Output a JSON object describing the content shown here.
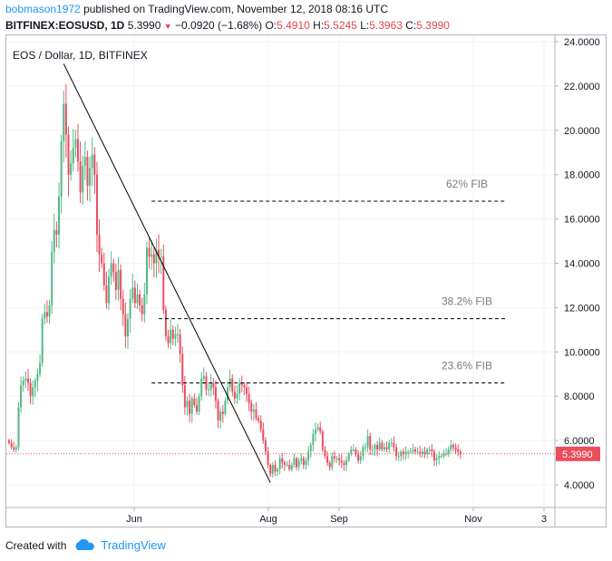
{
  "header": {
    "author": "bobmason1972",
    "published": "published on TradingView.com, November 12, 2018 08:16 UTC",
    "symbol": "BITFINEX:EOSUSD, 1D",
    "last": "5.3990",
    "change": "−0.0920 (−1.68%)",
    "o_label": "O:",
    "o": "5.4910",
    "h_label": "H:",
    "h": "5.5245",
    "l_label": "L:",
    "l": "5.3963",
    "c_label": "C:",
    "c": "5.3990"
  },
  "footer": {
    "created_with": "Created with",
    "brand": "TradingView"
  },
  "colors": {
    "up": "#53b987",
    "down": "#eb4d5c",
    "fib_line": "#000000",
    "fib_label": "#787b86",
    "price_tag": "#eb4d5c",
    "accent": "#2196f3"
  },
  "chart_data": {
    "type": "candlestick",
    "title": "EOS / Dollar, 1D, BITFINEX",
    "y_axis_side": "right",
    "ylim": [
      3.2,
      24.3
    ],
    "yticks": [
      "4.0000",
      "6.0000",
      "8.0000",
      "10.0000",
      "12.0000",
      "14.0000",
      "16.0000",
      "18.0000",
      "20.0000",
      "22.0000",
      "24.0000"
    ],
    "xticks": [
      "Jun",
      "Aug",
      "Sep",
      "Nov",
      "3"
    ],
    "last_price": "5.3990",
    "grid": true,
    "series": [
      {
        "name": "EOSUSD",
        "close": [
          5.9,
          5.7,
          5.6,
          5.7,
          7.5,
          8.5,
          8.7,
          8.8,
          8.6,
          8.0,
          8.4,
          8.7,
          9.0,
          9.5,
          11.5,
          11.8,
          11.6,
          12.1,
          14.5,
          15.5,
          15.3,
          17.0,
          19.5,
          21.2,
          19.8,
          18.0,
          18.5,
          19.2,
          19.6,
          18.6,
          17.2,
          18.4,
          18.8,
          17.5,
          18.3,
          18.9,
          18.0,
          15.3,
          14.4,
          14.0,
          13.0,
          12.2,
          13.4,
          14.0,
          13.6,
          12.8,
          13.7,
          12.4,
          11.7,
          10.7,
          11.5,
          12.4,
          12.9,
          12.2,
          12.6,
          12.1,
          11.7,
          12.6,
          14.7,
          14.3,
          14.4,
          14.0,
          14.6,
          14.3,
          14.3,
          11.9,
          10.7,
          10.4,
          11.0,
          10.6,
          10.8,
          10.8,
          9.9,
          8.5,
          7.5,
          7.8,
          7.2,
          7.9,
          7.6,
          7.3,
          8.0,
          8.8,
          8.9,
          8.3,
          8.3,
          8.6,
          8.4,
          7.8,
          6.9,
          7.3,
          7.2,
          7.8,
          8.4,
          8.8,
          8.2,
          7.9,
          8.1,
          8.6,
          8.5,
          8.4,
          8.1,
          7.7,
          7.3,
          7.4,
          7.0,
          6.9,
          6.5,
          6.0,
          5.5,
          4.9,
          4.5,
          4.9,
          4.6,
          4.7,
          5.2,
          5.0,
          4.9,
          4.9,
          4.7,
          4.9,
          5.2,
          4.8,
          5.1,
          5.2,
          4.9,
          5.1,
          5.5,
          5.8,
          6.3,
          6.5,
          6.6,
          6.4,
          5.6,
          5.3,
          5.0,
          4.8,
          5.3,
          5.2,
          5.2,
          5.1,
          5.0,
          4.9,
          5.1,
          5.4,
          5.6,
          5.6,
          5.4,
          5.1,
          5.3,
          5.7,
          5.7,
          6.2,
          5.6,
          5.6,
          5.8,
          5.6,
          5.9,
          5.6,
          5.7,
          5.6,
          5.9,
          5.9,
          5.7,
          5.3,
          5.3,
          5.5,
          5.4,
          5.5,
          5.5,
          5.5,
          5.6,
          5.5,
          5.5,
          5.4,
          5.5,
          5.4,
          5.6,
          5.6,
          5.5,
          5.1,
          5.2,
          5.3,
          5.3,
          5.4,
          5.4,
          5.6,
          5.8,
          5.7,
          5.6,
          5.5,
          5.4
        ]
      }
    ],
    "trendline": {
      "from_index": 23,
      "from_value": 23.0,
      "to_index": 110,
      "to_value": 4.1
    },
    "fib_levels": [
      {
        "label": "62% FIB",
        "value": 16.8,
        "from_index": 60,
        "to_index": 207
      },
      {
        "label": "38.2% FIB",
        "value": 11.5,
        "from_index": 63,
        "to_index": 207
      },
      {
        "label": "23.6% FIB",
        "value": 8.6,
        "from_index": 60,
        "to_index": 207
      }
    ]
  }
}
